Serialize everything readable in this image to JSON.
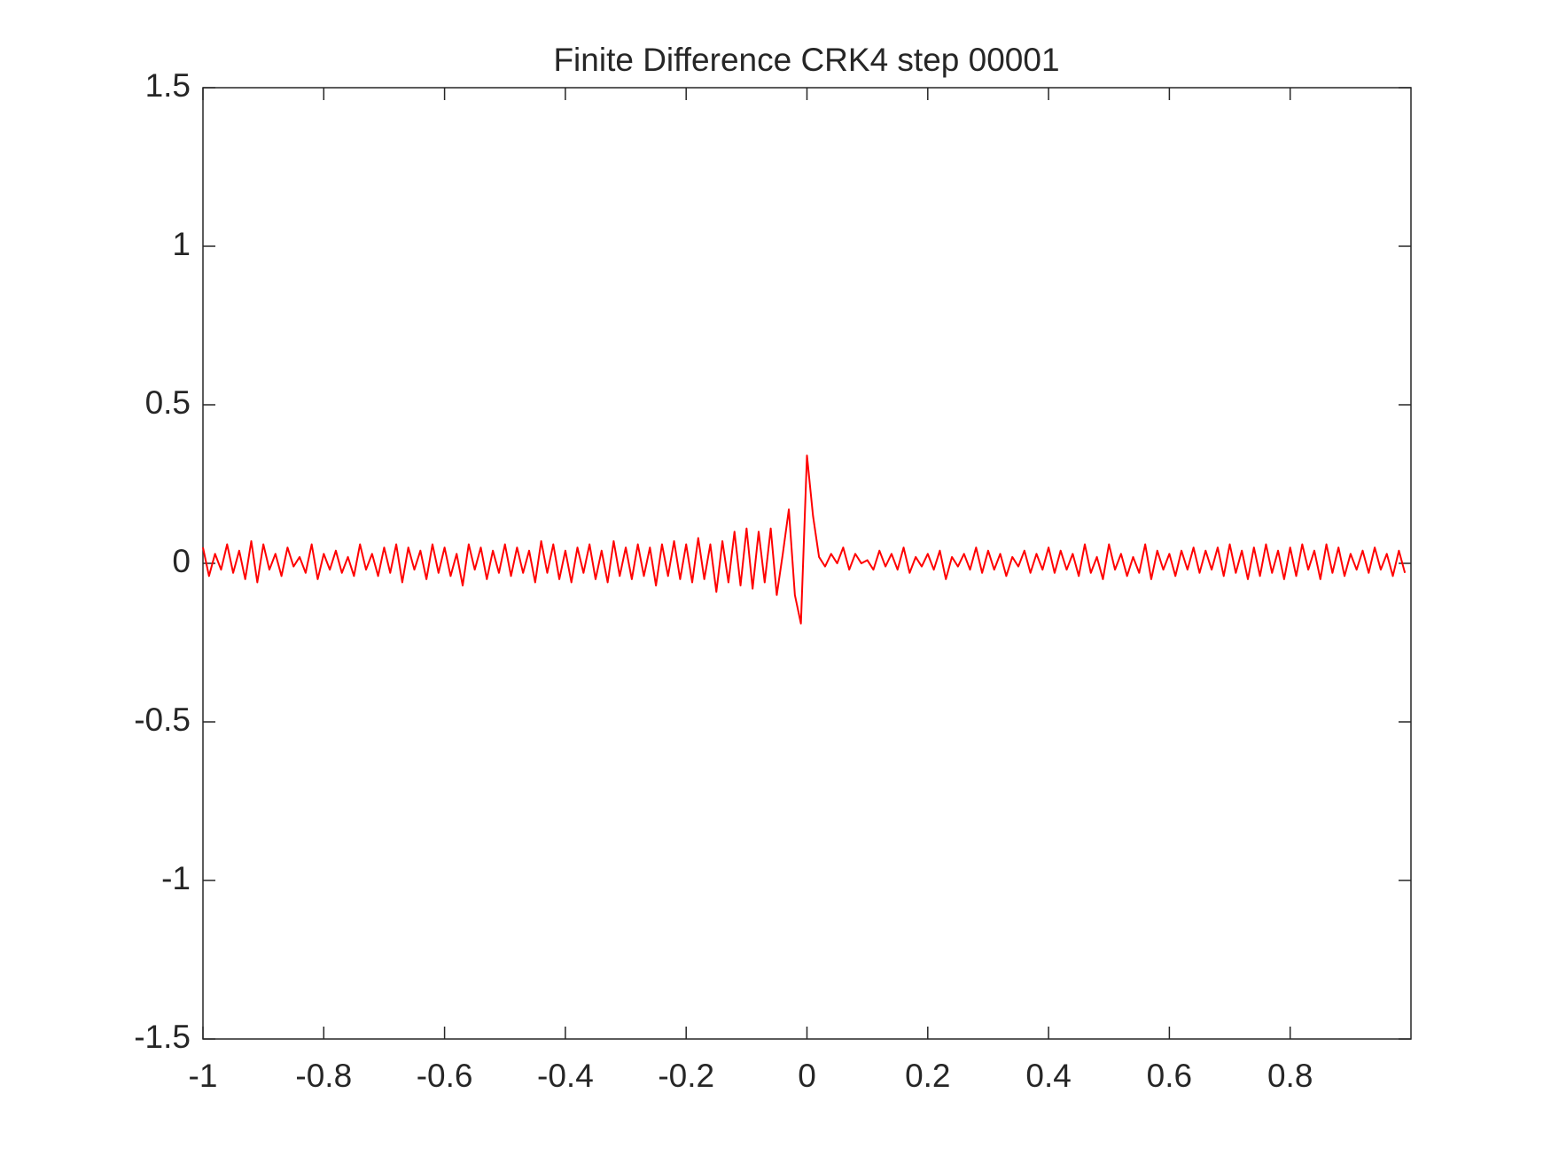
{
  "chart_data": {
    "type": "line",
    "title": "Finite Difference CRK4 step 00001",
    "color": "#ff0000",
    "xlim": [
      -1,
      1
    ],
    "ylim": [
      -1.5,
      1.5
    ],
    "xticks": [
      -1,
      -0.8,
      -0.6,
      -0.4,
      -0.2,
      0,
      0.2,
      0.4,
      0.6,
      0.8
    ],
    "yticks": [
      -1.5,
      -1,
      -0.5,
      0,
      0.5,
      1,
      1.5
    ],
    "grid": false,
    "x": [
      -1.0,
      -0.99,
      -0.98,
      -0.97,
      -0.96,
      -0.95,
      -0.94,
      -0.93,
      -0.92,
      -0.91,
      -0.9,
      -0.89,
      -0.88,
      -0.87,
      -0.86,
      -0.85,
      -0.84,
      -0.83,
      -0.82,
      -0.81,
      -0.8,
      -0.79,
      -0.78,
      -0.77,
      -0.76,
      -0.75,
      -0.74,
      -0.73,
      -0.72,
      -0.71,
      -0.7,
      -0.69,
      -0.68,
      -0.67,
      -0.66,
      -0.65,
      -0.64,
      -0.63,
      -0.62,
      -0.61,
      -0.6,
      -0.59,
      -0.58,
      -0.57,
      -0.56,
      -0.55,
      -0.54,
      -0.53,
      -0.52,
      -0.51,
      -0.5,
      -0.49,
      -0.48,
      -0.47,
      -0.46,
      -0.45,
      -0.44,
      -0.43,
      -0.42,
      -0.41,
      -0.4,
      -0.39,
      -0.38,
      -0.37,
      -0.36,
      -0.35,
      -0.34,
      -0.33,
      -0.32,
      -0.31,
      -0.3,
      -0.29,
      -0.28,
      -0.27,
      -0.26,
      -0.25,
      -0.24,
      -0.23,
      -0.22,
      -0.21,
      -0.2,
      -0.19,
      -0.18,
      -0.17,
      -0.16,
      -0.15,
      -0.14,
      -0.13,
      -0.12,
      -0.11,
      -0.1,
      -0.09,
      -0.08,
      -0.07,
      -0.06,
      -0.05,
      -0.04,
      -0.03,
      -0.02,
      -0.01,
      0.0,
      0.01,
      0.02,
      0.03,
      0.04,
      0.05,
      0.06,
      0.07,
      0.08,
      0.09,
      0.1,
      0.11,
      0.12,
      0.13,
      0.14,
      0.15,
      0.16,
      0.17,
      0.18,
      0.19,
      0.2,
      0.21,
      0.22,
      0.23,
      0.24,
      0.25,
      0.26,
      0.27,
      0.28,
      0.29,
      0.3,
      0.31,
      0.32,
      0.33,
      0.34,
      0.35,
      0.36,
      0.37,
      0.38,
      0.39,
      0.4,
      0.41,
      0.42,
      0.43,
      0.44,
      0.45,
      0.46,
      0.47,
      0.48,
      0.49,
      0.5,
      0.51,
      0.52,
      0.53,
      0.54,
      0.55,
      0.56,
      0.57,
      0.58,
      0.59,
      0.6,
      0.61,
      0.62,
      0.63,
      0.64,
      0.65,
      0.66,
      0.67,
      0.68,
      0.69,
      0.7,
      0.71,
      0.72,
      0.73,
      0.74,
      0.75,
      0.76,
      0.77,
      0.78,
      0.79,
      0.8,
      0.81,
      0.82,
      0.83,
      0.84,
      0.85,
      0.86,
      0.87,
      0.88,
      0.89,
      0.9,
      0.91,
      0.92,
      0.93,
      0.94,
      0.95,
      0.96,
      0.97,
      0.98,
      0.99
    ],
    "values": [
      0.05,
      -0.04,
      0.03,
      -0.02,
      0.06,
      -0.03,
      0.04,
      -0.05,
      0.07,
      -0.06,
      0.06,
      -0.02,
      0.03,
      -0.04,
      0.05,
      -0.01,
      0.02,
      -0.03,
      0.06,
      -0.05,
      0.03,
      -0.02,
      0.04,
      -0.03,
      0.02,
      -0.04,
      0.06,
      -0.02,
      0.03,
      -0.04,
      0.05,
      -0.03,
      0.06,
      -0.06,
      0.05,
      -0.02,
      0.04,
      -0.05,
      0.06,
      -0.03,
      0.05,
      -0.04,
      0.03,
      -0.07,
      0.06,
      -0.02,
      0.05,
      -0.05,
      0.04,
      -0.03,
      0.06,
      -0.04,
      0.05,
      -0.03,
      0.04,
      -0.06,
      0.07,
      -0.03,
      0.06,
      -0.05,
      0.04,
      -0.06,
      0.05,
      -0.03,
      0.06,
      -0.05,
      0.04,
      -0.06,
      0.07,
      -0.04,
      0.05,
      -0.05,
      0.06,
      -0.04,
      0.05,
      -0.07,
      0.06,
      -0.04,
      0.07,
      -0.05,
      0.06,
      -0.06,
      0.08,
      -0.05,
      0.06,
      -0.09,
      0.07,
      -0.06,
      0.1,
      -0.07,
      0.11,
      -0.08,
      0.1,
      -0.06,
      0.11,
      -0.1,
      0.03,
      0.17,
      -0.1,
      -0.19,
      0.34,
      0.15,
      0.02,
      -0.01,
      0.03,
      0.0,
      0.05,
      -0.02,
      0.03,
      0.0,
      0.01,
      -0.02,
      0.04,
      -0.01,
      0.03,
      -0.02,
      0.05,
      -0.03,
      0.02,
      -0.01,
      0.03,
      -0.02,
      0.04,
      -0.05,
      0.02,
      -0.01,
      0.03,
      -0.02,
      0.05,
      -0.03,
      0.04,
      -0.02,
      0.03,
      -0.04,
      0.02,
      -0.01,
      0.04,
      -0.03,
      0.03,
      -0.02,
      0.05,
      -0.03,
      0.04,
      -0.02,
      0.03,
      -0.04,
      0.06,
      -0.03,
      0.02,
      -0.05,
      0.06,
      -0.02,
      0.03,
      -0.04,
      0.02,
      -0.03,
      0.06,
      -0.05,
      0.04,
      -0.02,
      0.03,
      -0.04,
      0.04,
      -0.02,
      0.05,
      -0.03,
      0.04,
      -0.02,
      0.05,
      -0.04,
      0.06,
      -0.03,
      0.04,
      -0.05,
      0.05,
      -0.04,
      0.06,
      -0.03,
      0.04,
      -0.05,
      0.05,
      -0.04,
      0.06,
      -0.02,
      0.04,
      -0.05,
      0.06,
      -0.03,
      0.05,
      -0.04,
      0.03,
      -0.02,
      0.04,
      -0.03,
      0.05,
      -0.02,
      0.03,
      -0.04,
      0.04,
      -0.03
    ]
  }
}
